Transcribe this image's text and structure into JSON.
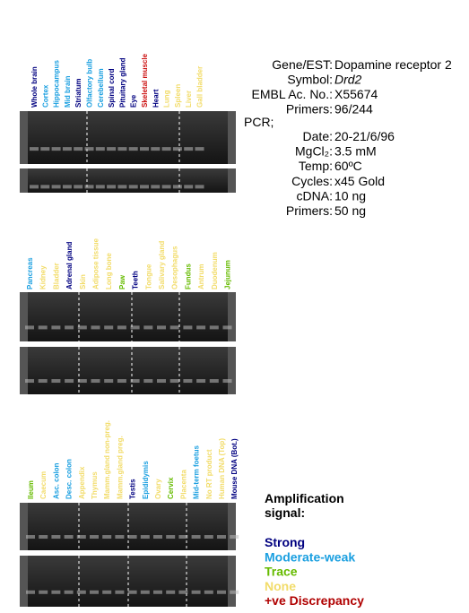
{
  "panels": [
    {
      "lanes": [
        {
          "label": "Whole brain",
          "color": "#000080"
        },
        {
          "label": "Cortex",
          "color": "#1a9fe0"
        },
        {
          "label": "Hippocampus",
          "color": "#1a9fe0"
        },
        {
          "label": "Mid brain",
          "color": "#1a9fe0"
        },
        {
          "label": "Striatum",
          "color": "#000080"
        },
        {
          "label": "Olfactory bulb",
          "color": "#1a9fe0"
        },
        {
          "label": "Cerebellum",
          "color": "#1a9fe0"
        },
        {
          "label": "Spinal cord",
          "color": "#000080"
        },
        {
          "label": "Pituitary gland",
          "color": "#000080"
        },
        {
          "label": "Eye",
          "color": "#000080"
        },
        {
          "label": "Skeletal muscle",
          "color": "#cc1111"
        },
        {
          "label": "Heart",
          "color": "#000080"
        },
        {
          "label": "Lung",
          "color": "#f2dc6a"
        },
        {
          "label": "Spleen",
          "color": "#f2dc6a"
        },
        {
          "label": "Liver",
          "color": "#f2dc6a"
        },
        {
          "label": "Gall bladder",
          "color": "#f2dc6a"
        }
      ]
    },
    {
      "lanes": [
        {
          "label": "Pancreas",
          "color": "#1a9fe0"
        },
        {
          "label": "Kidney",
          "color": "#f2dc6a"
        },
        {
          "label": "Bladder",
          "color": "#f2dc6a"
        },
        {
          "label": "Adrenal gland",
          "color": "#000080"
        },
        {
          "label": "Skin",
          "color": "#f2dc6a"
        },
        {
          "label": "Adipose tissue",
          "color": "#f2dc6a"
        },
        {
          "label": "Long bone",
          "color": "#f2dc6a"
        },
        {
          "label": "Paw",
          "color": "#66bb00"
        },
        {
          "label": "Teeth",
          "color": "#000080"
        },
        {
          "label": "Tongue",
          "color": "#f2dc6a"
        },
        {
          "label": "Salivary gland",
          "color": "#f2dc6a"
        },
        {
          "label": "Oesophagus",
          "color": "#f2dc6a"
        },
        {
          "label": "Fundus",
          "color": "#66bb00"
        },
        {
          "label": "Antrum",
          "color": "#f2dc6a"
        },
        {
          "label": "Duodenum",
          "color": "#f2dc6a"
        },
        {
          "label": "Jejunum",
          "color": "#66bb00"
        }
      ]
    },
    {
      "lanes": [
        {
          "label": "Ileum",
          "color": "#66bb00"
        },
        {
          "label": "Caecum",
          "color": "#f2dc6a"
        },
        {
          "label": "Asc. colon",
          "color": "#1a9fe0"
        },
        {
          "label": "Desc. colon",
          "color": "#1a9fe0"
        },
        {
          "label": "Appendix",
          "color": "#f2dc6a"
        },
        {
          "label": "Thymus",
          "color": "#f2dc6a"
        },
        {
          "label": "Mamm.gland non-preg.",
          "color": "#f2dc6a"
        },
        {
          "label": "Mamm.gland preg.",
          "color": "#f2dc6a"
        },
        {
          "label": "Testis",
          "color": "#000080"
        },
        {
          "label": "Epididymis",
          "color": "#1a9fe0"
        },
        {
          "label": "Ovary",
          "color": "#f2dc6a"
        },
        {
          "label": "Cervix",
          "color": "#66bb00"
        },
        {
          "label": "Placenta",
          "color": "#f2dc6a"
        },
        {
          "label": "Mid-term foetus",
          "color": "#1a9fe0"
        },
        {
          "label": "No RT product",
          "color": "#f2dc6a"
        },
        {
          "label": "Human DNA (Top)",
          "color": "#f2dc6a"
        },
        {
          "label": "Mouse DNA (Bot.)",
          "color": "#000080"
        }
      ]
    }
  ],
  "info": {
    "rows": [
      {
        "key": "Gene/EST:",
        "value": "Dopamine receptor 2"
      },
      {
        "key": "Symbol:",
        "value": "Drd2"
      },
      {
        "key": "EMBL Ac. No.:",
        "value": "X55674"
      },
      {
        "key": "Primers:",
        "value": "96/244"
      }
    ],
    "pcr_heading": "PCR;",
    "pcr_rows": [
      {
        "key": "Date:",
        "value": "20-21/6/96"
      },
      {
        "key": "MgCl₂:",
        "value": "3.5 mM"
      },
      {
        "key": "Temp:",
        "value": "60ºC"
      },
      {
        "key": "Cycles:",
        "value": "x45 Gold"
      },
      {
        "key": "cDNA:",
        "value": "10 ng"
      },
      {
        "key": "Primers:",
        "value": "50 ng"
      }
    ]
  },
  "legend": {
    "title": "Amplification signal:",
    "items": [
      {
        "label": "Strong",
        "color": "#000080"
      },
      {
        "label": "Moderate-weak",
        "color": "#1a9fe0"
      },
      {
        "label": "Trace",
        "color": "#66bb00"
      },
      {
        "label": "None",
        "color": "#f2dc6a"
      },
      {
        "label": "+ve Discrepancy",
        "color": "#b00000"
      }
    ]
  }
}
